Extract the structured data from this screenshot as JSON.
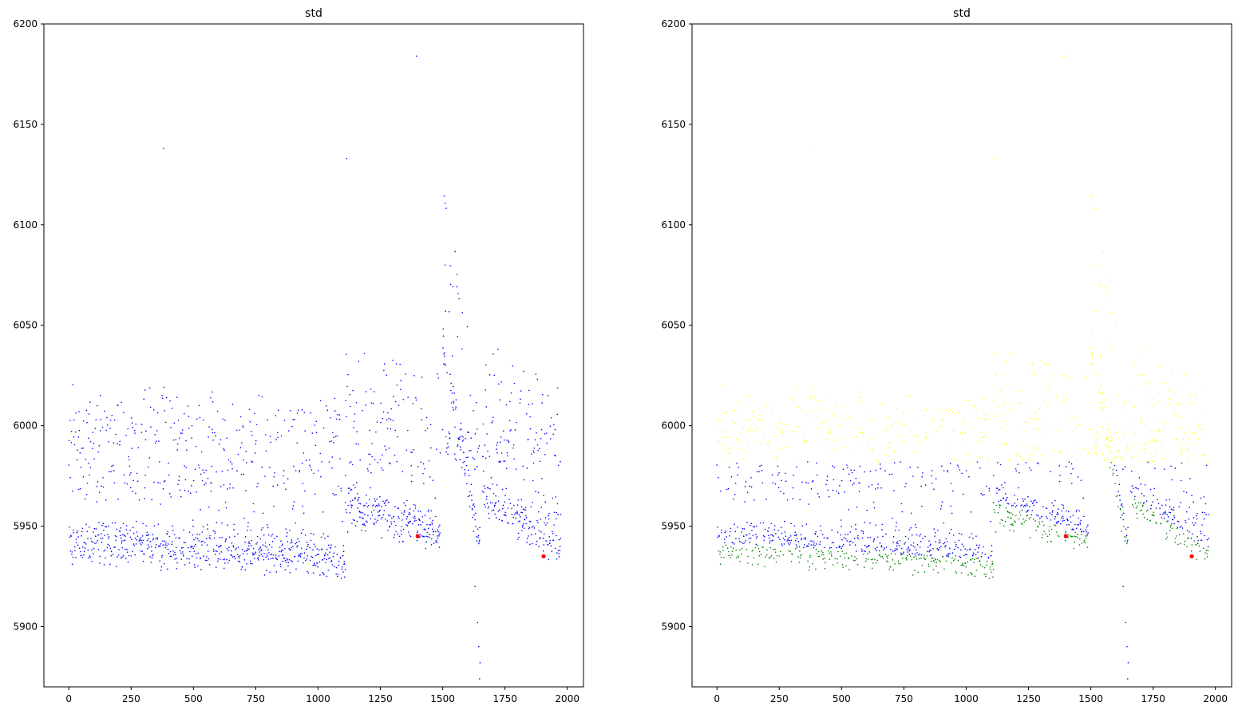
{
  "chart_data": [
    {
      "type": "scatter",
      "title": "std",
      "xlabel": "",
      "ylabel": "",
      "xlim": [
        -100,
        2065
      ],
      "ylim": [
        5870,
        6200
      ],
      "xticks": [
        0,
        250,
        500,
        750,
        1000,
        1250,
        1500,
        1750,
        2000
      ],
      "yticks": [
        5900,
        5950,
        6000,
        6050,
        6100,
        6150,
        6200
      ],
      "grid": false,
      "legend": "none",
      "series": [
        {
          "color": "#0000ff",
          "marker": "small-dot",
          "segments": [
            {
              "x_start": 0,
              "x_end": 1110,
              "baseline_start": 5942,
              "baseline_end": 5934,
              "bands": [
                5945,
                5975,
                6000
              ]
            },
            {
              "x_start": 1110,
              "x_end": 1490,
              "baseline_start": 5962,
              "baseline_end": 5946,
              "bands": [
                5955,
                5980,
                6005
              ]
            },
            {
              "x_start": 1500,
              "x_end": 1650,
              "baseline_start": 6040,
              "baseline_end": 5940,
              "bands": [
                5990
              ]
            },
            {
              "x_start": 1660,
              "x_end": 1975,
              "baseline_start": 5966,
              "baseline_end": 5938,
              "bands": [
                5960,
                5990
              ]
            }
          ],
          "outliers": [
            {
              "x": 380,
              "y": 6138
            },
            {
              "x": 1115,
              "y": 6133
            },
            {
              "x": 1395,
              "y": 6184
            },
            {
              "x": 1510,
              "y": 6080
            },
            {
              "x": 1512,
              "y": 6057
            },
            {
              "x": 1640,
              "y": 5902
            },
            {
              "x": 1645,
              "y": 5890
            },
            {
              "x": 1650,
              "y": 5882
            },
            {
              "x": 1648,
              "y": 5874
            },
            {
              "x": 1630,
              "y": 5920
            }
          ]
        },
        {
          "color": "#ff0000",
          "marker": "dot",
          "points": [
            {
              "x": 1400,
              "y": 5945
            },
            {
              "x": 1905,
              "y": 5935
            }
          ]
        }
      ]
    },
    {
      "type": "scatter",
      "title": "std",
      "xlabel": "",
      "ylabel": "",
      "xlim": [
        -100,
        2065
      ],
      "ylim": [
        5870,
        6200
      ],
      "xticks": [
        0,
        250,
        500,
        750,
        1000,
        1250,
        1500,
        1750,
        2000
      ],
      "yticks": [
        5900,
        5950,
        6000,
        6050,
        6100,
        6150,
        6200
      ],
      "grid": false,
      "legend": "none",
      "series": [
        {
          "color": "#ffff00",
          "marker": "small-dot",
          "rule": "same points as left panel, above 5980 (upper cluster)"
        },
        {
          "color": "#0000ff",
          "marker": "small-dot",
          "rule": "same points as left panel, middle cluster"
        },
        {
          "color": "#008000",
          "marker": "small-dot",
          "rule": "same points as left panel, below the local baseline (lower cluster)"
        },
        {
          "color": "#ff0000",
          "marker": "dot",
          "points": [
            {
              "x": 1400,
              "y": 5945
            },
            {
              "x": 1905,
              "y": 5935
            }
          ]
        }
      ]
    }
  ]
}
